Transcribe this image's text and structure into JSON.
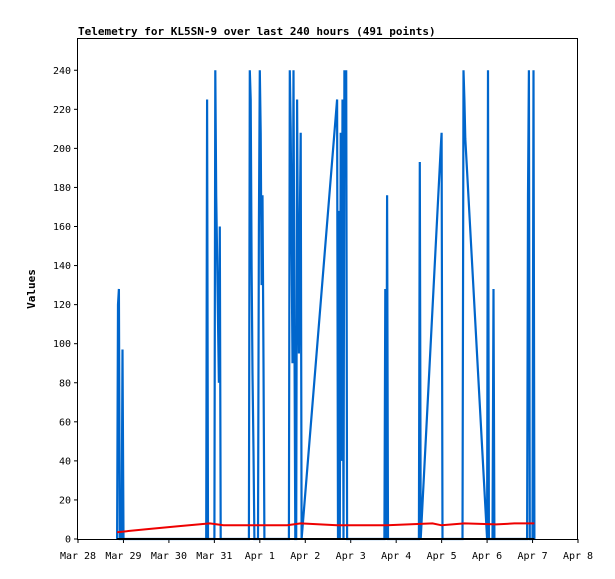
{
  "chart_data": {
    "type": "line",
    "title": "Telemetry for KL5SN-9 over last 240 hours (491 points)",
    "xlabel": "",
    "ylabel": "Values",
    "x_tick_labels": [
      "Mar 28",
      "Mar 29",
      "Mar 30",
      "Mar 31",
      "Apr 1",
      "Apr 2",
      "Apr 3",
      "Apr 4",
      "Apr 5",
      "Apr 6",
      "Apr 7",
      "Apr 8"
    ],
    "y_ticks": [
      0,
      20,
      40,
      60,
      80,
      100,
      120,
      140,
      160,
      180,
      200,
      220,
      240
    ],
    "xlim_days": [
      0,
      11
    ],
    "ylim": [
      0,
      256
    ],
    "grid": false,
    "legend": "none",
    "series": [
      {
        "color": "#0066cc",
        "points": [
          [
            0.86,
            0
          ],
          [
            0.88,
            120
          ],
          [
            0.9,
            128
          ],
          [
            0.92,
            0
          ],
          [
            0.96,
            0
          ],
          [
            0.98,
            97
          ],
          [
            1.0,
            0
          ],
          [
            2.82,
            0
          ],
          [
            2.84,
            225
          ],
          [
            2.86,
            0
          ],
          [
            3.0,
            0
          ],
          [
            3.02,
            240
          ],
          [
            3.04,
            176
          ],
          [
            3.06,
            145
          ],
          [
            3.08,
            112
          ],
          [
            3.1,
            80
          ],
          [
            3.12,
            160
          ],
          [
            3.14,
            0
          ],
          [
            3.76,
            0
          ],
          [
            3.78,
            240
          ],
          [
            3.8,
            225
          ],
          [
            3.82,
            140
          ],
          [
            3.84,
            85
          ],
          [
            3.86,
            45
          ],
          [
            3.88,
            0
          ],
          [
            3.96,
            0
          ],
          [
            3.98,
            160
          ],
          [
            4.0,
            240
          ],
          [
            4.02,
            208
          ],
          [
            4.04,
            130
          ],
          [
            4.06,
            176
          ],
          [
            4.08,
            90
          ],
          [
            4.1,
            0
          ],
          [
            4.64,
            0
          ],
          [
            4.66,
            240
          ],
          [
            4.68,
            210
          ],
          [
            4.7,
            150
          ],
          [
            4.72,
            90
          ],
          [
            4.74,
            240
          ],
          [
            4.76,
            112
          ],
          [
            4.78,
            0
          ],
          [
            4.8,
            0
          ],
          [
            4.82,
            225
          ],
          [
            4.84,
            140
          ],
          [
            4.86,
            95
          ],
          [
            4.88,
            160
          ],
          [
            4.9,
            208
          ],
          [
            4.92,
            0
          ],
          [
            5.7,
            225
          ],
          [
            5.72,
            0
          ],
          [
            5.74,
            168
          ],
          [
            5.76,
            0
          ],
          [
            5.78,
            208
          ],
          [
            5.8,
            40
          ],
          [
            5.82,
            225
          ],
          [
            5.84,
            0
          ],
          [
            5.86,
            240
          ],
          [
            5.88,
            215
          ],
          [
            5.9,
            240
          ],
          [
            5.92,
            0
          ],
          [
            6.74,
            0
          ],
          [
            6.76,
            128
          ],
          [
            6.78,
            0
          ],
          [
            6.8,
            176
          ],
          [
            6.82,
            0
          ],
          [
            7.5,
            0
          ],
          [
            7.52,
            193
          ],
          [
            7.54,
            0
          ],
          [
            7.98,
            200
          ],
          [
            8.0,
            208
          ],
          [
            8.02,
            0
          ],
          [
            8.46,
            0
          ],
          [
            8.48,
            240
          ],
          [
            8.5,
            225
          ],
          [
            8.52,
            205
          ],
          [
            9.0,
            0
          ],
          [
            9.02,
            240
          ],
          [
            9.04,
            0
          ],
          [
            9.12,
            0
          ],
          [
            9.14,
            128
          ],
          [
            9.16,
            0
          ],
          [
            9.88,
            0
          ],
          [
            9.9,
            176
          ],
          [
            9.92,
            240
          ],
          [
            9.94,
            0
          ],
          [
            10.0,
            0
          ],
          [
            10.02,
            240
          ],
          [
            10.04,
            0
          ]
        ]
      },
      {
        "color": "#ee0000",
        "points": [
          [
            0.86,
            3.5
          ],
          [
            1.5,
            5
          ],
          [
            2.2,
            6.5
          ],
          [
            2.9,
            8
          ],
          [
            3.2,
            7
          ],
          [
            4.6,
            7
          ],
          [
            4.9,
            8
          ],
          [
            5.7,
            7
          ],
          [
            6.8,
            7
          ],
          [
            7.8,
            8
          ],
          [
            8.0,
            7
          ],
          [
            8.5,
            8
          ],
          [
            9.2,
            7.5
          ],
          [
            9.6,
            8
          ],
          [
            10.04,
            8
          ]
        ]
      },
      {
        "color": "#000000",
        "points": [
          [
            0.86,
            0
          ],
          [
            10.04,
            0
          ]
        ]
      }
    ]
  }
}
